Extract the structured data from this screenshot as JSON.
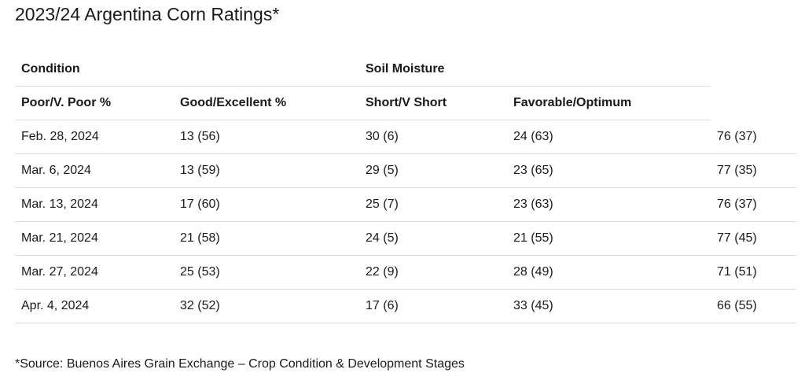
{
  "title": "2023/24 Argentina Corn Ratings*",
  "table": {
    "group_headers": [
      "Condition",
      "Soil Moisture"
    ],
    "column_headers": [
      "Poor/V. Poor %",
      "Good/Excellent %",
      "Short/V Short",
      "Favorable/Optimum"
    ],
    "rows": [
      [
        "Feb. 28, 2024",
        "13 (56)",
        "30 (6)",
        "24 (63)",
        "76 (37)"
      ],
      [
        "Mar. 6, 2024",
        "13 (59)",
        "29 (5)",
        "23 (65)",
        "77 (35)"
      ],
      [
        "Mar. 13, 2024",
        "17 (60)",
        "25 (7)",
        "23 (63)",
        "76 (37)"
      ],
      [
        "Mar. 21, 2024",
        "21 (58)",
        "24 (5)",
        "21 (55)",
        "77 (45)"
      ],
      [
        "Mar. 27, 2024",
        "25 (53)",
        "22 (9)",
        "28 (49)",
        "71 (51)"
      ],
      [
        "Apr. 4, 2024",
        "32 (52)",
        "17 (6)",
        "33 (45)",
        "66 (55)"
      ]
    ]
  },
  "footnote": "*Source: Buenos Aires Grain Exchange – Crop Condition & Development Stages"
}
